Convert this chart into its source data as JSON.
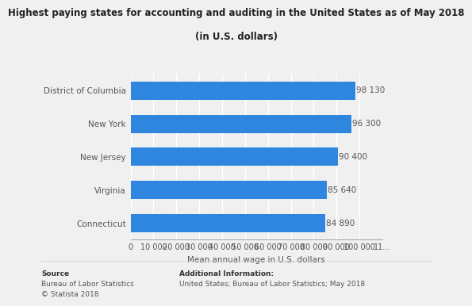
{
  "title_line1": "Highest paying states for accounting and auditing in the United States as of May 2018",
  "title_line2": "(in U.S. dollars)",
  "categories": [
    "Connecticut",
    "Virginia",
    "New Jersey",
    "New York",
    "District of Columbia"
  ],
  "values": [
    84890,
    85640,
    90400,
    96300,
    98130
  ],
  "bar_color": "#2e86de",
  "xlabel": "Mean annual wage in U.S. dollars",
  "xlim": [
    0,
    110000
  ],
  "xtick_values": [
    0,
    10000,
    20000,
    30000,
    40000,
    50000,
    60000,
    70000,
    80000,
    90000,
    100000,
    110000
  ],
  "xtick_labels": [
    "0",
    "10 000",
    "20 000",
    "30 000",
    "40 000",
    "50 000",
    "60 000",
    "70 000",
    "80 000",
    "90 000",
    "100 000",
    "11..."
  ],
  "value_labels": [
    "84 890",
    "85 640",
    "90 400",
    "96 300",
    "98 130"
  ],
  "background_color": "#f0f0f0",
  "source_line1": "Source",
  "source_line2": "Bureau of Labor Statistics",
  "source_line3": "© Statista 2018",
  "additional_line1": "Additional Information:",
  "additional_line2": "United States; Bureau of Labor Statistics; May 2018",
  "title_fontsize": 8.5,
  "label_fontsize": 7.5,
  "tick_fontsize": 7,
  "footer_fontsize": 6.5
}
